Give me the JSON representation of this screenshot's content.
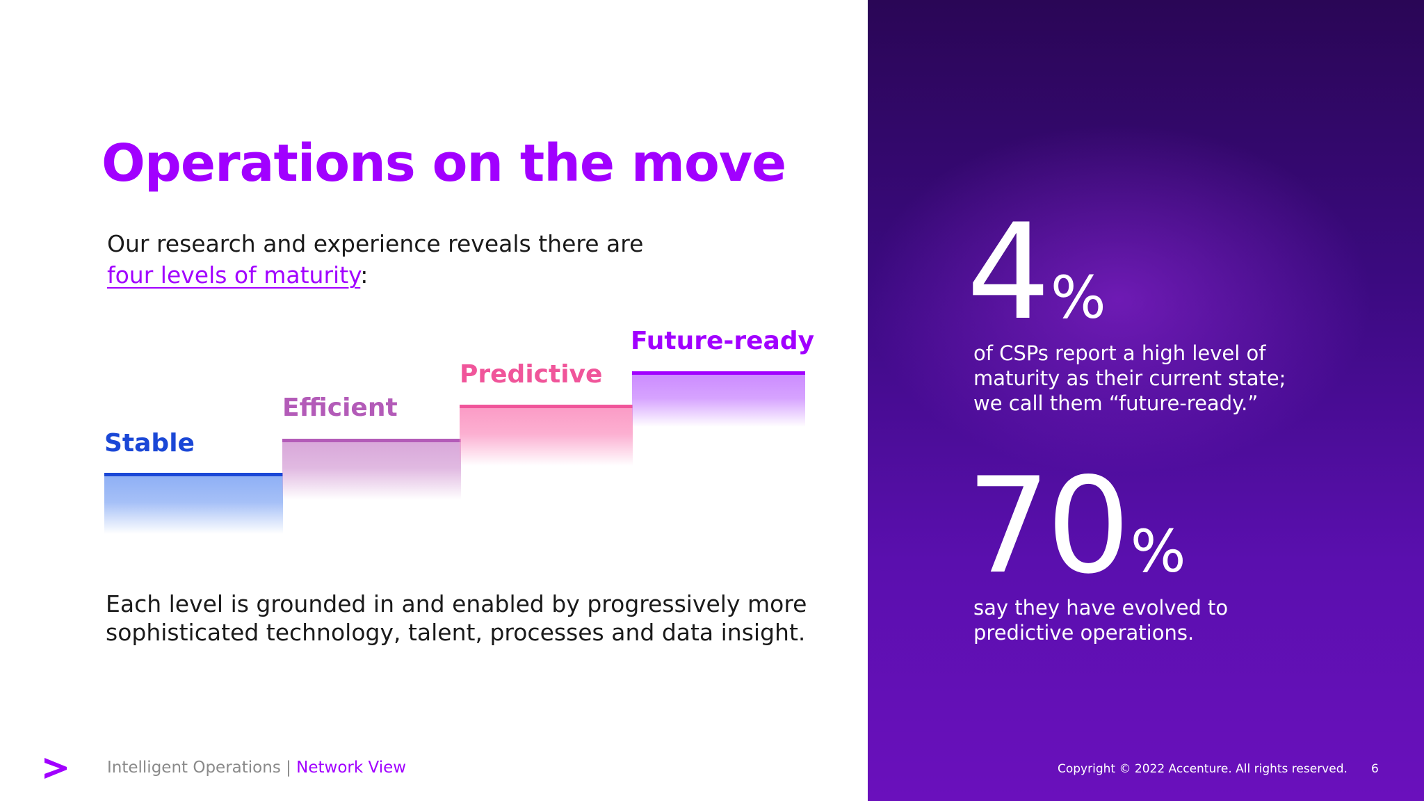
{
  "slide": {
    "title": "Operations on the move",
    "intro_line1": "Our research and experience reveals there are",
    "intro_link": "four levels of maturity",
    "intro_after_link": ":",
    "bottom_text_line1": "Each level is grounded in and enabled by progressively more",
    "bottom_text_line2": "sophisticated technology, talent, processes and data insight."
  },
  "steps": [
    {
      "label": "Stable",
      "color": "#1a47d6",
      "fill": "#8fb0f5"
    },
    {
      "label": "Efficient",
      "color": "#b35bb8",
      "fill": "#d9a8da"
    },
    {
      "label": "Predictive",
      "color": "#f0559a",
      "fill": "#fb9cc6"
    },
    {
      "label": "Future-ready",
      "color": "#a100ff",
      "fill": "#cc8cff"
    }
  ],
  "stats": [
    {
      "number": "4",
      "unit": "%",
      "line1": "of CSPs report a high level of",
      "line2": "maturity as their current state;",
      "line3": "we call them “future-ready.”"
    },
    {
      "number": "70",
      "unit": "%",
      "line1": "say they have evolved to",
      "line2": "predictive operations."
    }
  ],
  "footer": {
    "brand_icon": "accenture-chevron-icon",
    "section": "Intelligent Operations | ",
    "section_accent": "Network View",
    "copyright": "Copyright © 2022 Accenture. All rights reserved.",
    "page_number": "6"
  }
}
